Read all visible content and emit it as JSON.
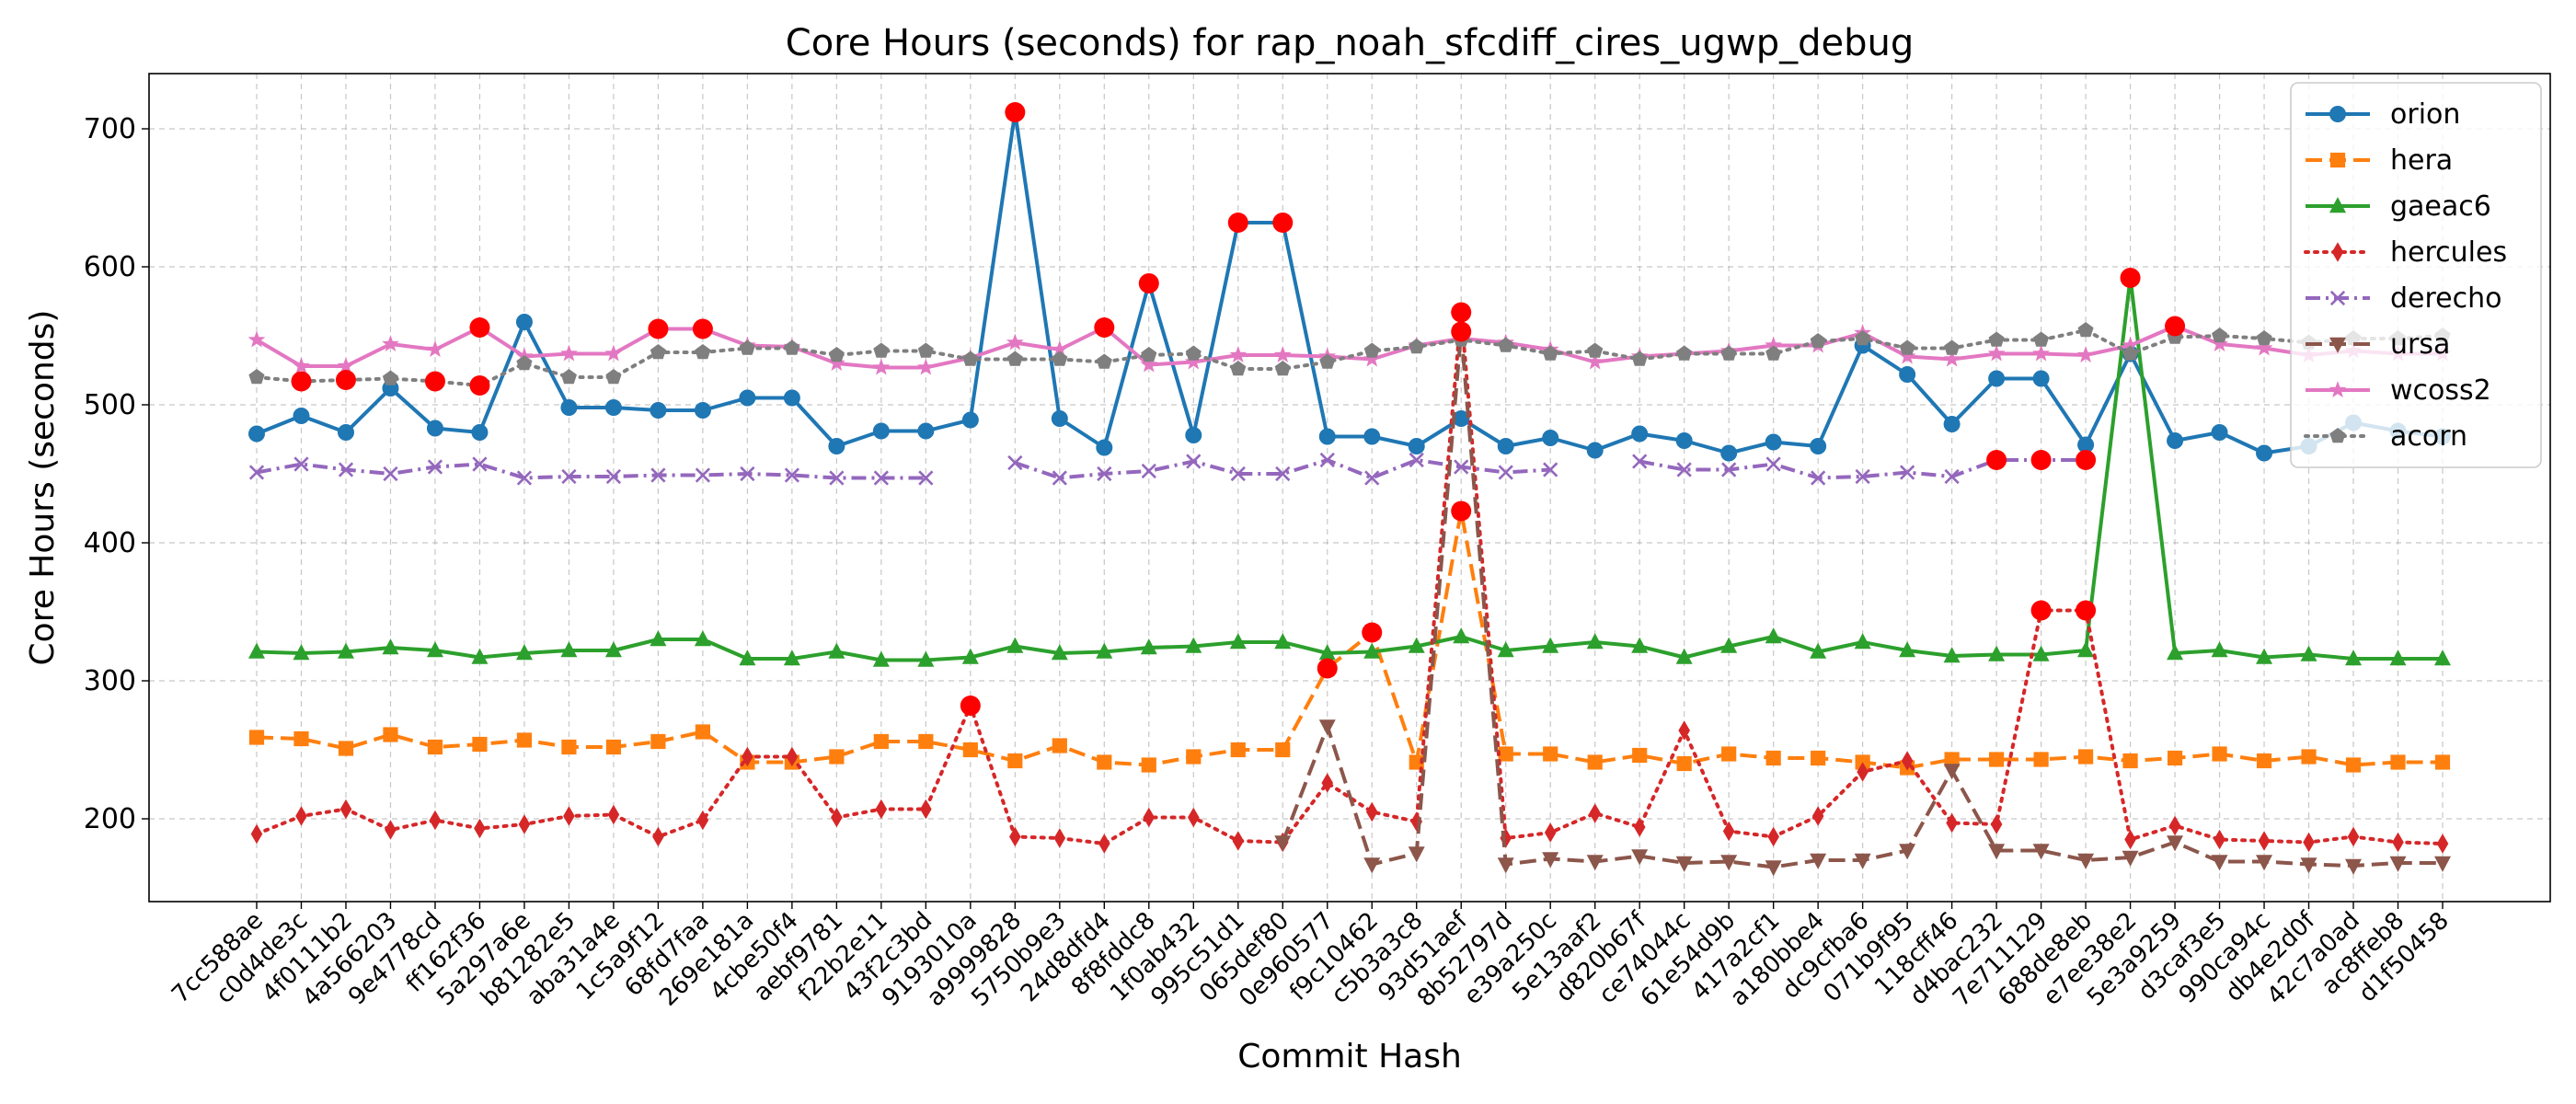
{
  "chart_data": {
    "type": "line",
    "title": "Core Hours (seconds) for rap_noah_sfcdiff_cires_ugwp_debug",
    "xlabel": "Commit Hash",
    "ylabel": "Core Hours (seconds)",
    "ylim": [
      140,
      740
    ],
    "yticks": [
      200,
      300,
      400,
      500,
      600,
      700
    ],
    "grid": true,
    "legend_position": "top-right",
    "categories": [
      "7cc588ae",
      "c0d4de3c",
      "4f0111b2",
      "4a566203",
      "9e4778cd",
      "ff162f36",
      "5a297a6e",
      "b81282e5",
      "aba31a4e",
      "1c5a9f12",
      "68fd7faa",
      "269e181a",
      "4cbe50f4",
      "aebf9781",
      "f22b2e11",
      "43f2c3bd",
      "9193010a",
      "a9999828",
      "5750b9e3",
      "24d8dfd4",
      "8f8fddc8",
      "1f0ab432",
      "995c51d1",
      "065def80",
      "0e960577",
      "f9c10462",
      "c5b3a3c8",
      "93d51aef",
      "8b52797d",
      "e39a250c",
      "5e13aaf2",
      "d820b67f",
      "ce74044c",
      "61e54d9b",
      "417a2cf1",
      "a180bbe4",
      "dc9cfba6",
      "071b9f95",
      "118cff46",
      "d4bac232",
      "7e711129",
      "688de8eb",
      "e7ee38e2",
      "5e3a9259",
      "d3caf3e5",
      "990ca94c",
      "db4e2d0f",
      "42c7a0ad",
      "ac8ffeb8",
      "d1f50458"
    ],
    "series": [
      {
        "name": "orion",
        "color": "#1f77b4",
        "marker": "circle",
        "dash": "solid",
        "values": [
          479,
          492,
          480,
          512,
          483,
          480,
          560,
          498,
          498,
          496,
          496,
          505,
          505,
          470,
          481,
          481,
          489,
          712,
          490,
          469,
          588,
          478,
          632,
          632,
          477,
          477,
          470,
          490,
          470,
          476,
          467,
          479,
          474,
          465,
          473,
          470,
          543,
          522,
          486,
          519,
          519,
          471,
          537,
          474,
          480,
          465,
          470,
          487,
          481,
          477
        ]
      },
      {
        "name": "hera",
        "color": "#ff7f0e",
        "marker": "square",
        "dash": "dashed",
        "values": [
          259,
          258,
          251,
          261,
          252,
          254,
          257,
          252,
          252,
          256,
          263,
          241,
          241,
          245,
          256,
          256,
          250,
          242,
          253,
          241,
          239,
          245,
          250,
          250,
          309,
          335,
          241,
          423,
          247,
          247,
          241,
          246,
          240,
          247,
          244,
          244,
          241,
          237,
          243,
          243,
          243,
          245,
          242,
          244,
          247,
          242,
          245,
          239,
          241,
          241
        ]
      },
      {
        "name": "gaeac6",
        "color": "#2ca02c",
        "marker": "triangle-up",
        "dash": "solid",
        "values": [
          321,
          320,
          321,
          324,
          322,
          317,
          320,
          322,
          322,
          330,
          330,
          316,
          316,
          321,
          315,
          315,
          317,
          325,
          320,
          321,
          324,
          325,
          328,
          328,
          320,
          321,
          325,
          332,
          322,
          325,
          328,
          325,
          317,
          325,
          332,
          321,
          328,
          322,
          318,
          319,
          319,
          322,
          592,
          320,
          322,
          317,
          319,
          316,
          316,
          316
        ]
      },
      {
        "name": "hercules",
        "color": "#d62728",
        "marker": "diamond",
        "dash": "dotted",
        "values": [
          189,
          202,
          207,
          192,
          199,
          193,
          196,
          202,
          203,
          187,
          199,
          245,
          245,
          201,
          207,
          207,
          282,
          187,
          186,
          182,
          201,
          201,
          184,
          183,
          226,
          205,
          198,
          567,
          186,
          190,
          204,
          194,
          264,
          191,
          187,
          202,
          234,
          242,
          197,
          196,
          351,
          351,
          185,
          195,
          185,
          184,
          183,
          187,
          183,
          182
        ]
      },
      {
        "name": "derecho",
        "color": "#9467bd",
        "marker": "x",
        "dash": "dashdot",
        "values": [
          451,
          457,
          453,
          450,
          455,
          457,
          447,
          448,
          448,
          449,
          449,
          450,
          449,
          447,
          447,
          447,
          null,
          458,
          447,
          450,
          452,
          459,
          450,
          450,
          460,
          447,
          460,
          455,
          451,
          453,
          null,
          459,
          453,
          453,
          457,
          447,
          448,
          451,
          448,
          460,
          460,
          460,
          null,
          null,
          null,
          null,
          null,
          null,
          null,
          null
        ]
      },
      {
        "name": "ursa",
        "color": "#8c564b",
        "marker": "triangle-down",
        "dash": "dashed",
        "values": [
          null,
          null,
          null,
          null,
          null,
          null,
          null,
          null,
          null,
          null,
          null,
          null,
          null,
          null,
          null,
          null,
          null,
          null,
          null,
          null,
          null,
          null,
          null,
          183,
          267,
          167,
          175,
          553,
          167,
          171,
          169,
          173,
          168,
          169,
          165,
          170,
          170,
          177,
          235,
          177,
          177,
          170,
          172,
          183,
          169,
          169,
          167,
          166,
          168,
          168
        ]
      },
      {
        "name": "wcoss2",
        "color": "#e377c2",
        "marker": "star",
        "dash": "solid",
        "values": [
          547,
          528,
          528,
          544,
          540,
          556,
          535,
          537,
          537,
          555,
          555,
          543,
          542,
          530,
          527,
          527,
          534,
          545,
          540,
          556,
          529,
          531,
          536,
          536,
          535,
          533,
          543,
          548,
          545,
          540,
          531,
          535,
          537,
          539,
          543,
          543,
          552,
          535,
          533,
          537,
          537,
          536,
          543,
          557,
          544,
          541,
          536,
          539,
          537,
          537
        ]
      },
      {
        "name": "acorn",
        "color": "#7f7f7f",
        "marker": "pentagon",
        "dash": "dotted",
        "values": [
          520,
          517,
          518,
          519,
          517,
          514,
          530,
          520,
          520,
          538,
          538,
          541,
          541,
          536,
          539,
          539,
          533,
          533,
          533,
          531,
          536,
          537,
          526,
          526,
          531,
          539,
          542,
          547,
          543,
          537,
          539,
          533,
          537,
          537,
          537,
          546,
          548,
          541,
          541,
          547,
          547,
          554,
          537,
          549,
          550,
          548,
          545,
          548,
          548,
          550
        ]
      }
    ],
    "highlights": [
      {
        "series": "orion",
        "indices": [
          17,
          20,
          22,
          23
        ]
      },
      {
        "series": "hera",
        "indices": [
          24,
          25,
          27
        ]
      },
      {
        "series": "gaeac6",
        "indices": [
          42
        ]
      },
      {
        "series": "hercules",
        "indices": [
          16,
          27,
          40,
          41
        ]
      },
      {
        "series": "derecho",
        "indices": [
          39,
          40,
          41
        ]
      },
      {
        "series": "ursa",
        "indices": [
          27
        ]
      },
      {
        "series": "wcoss2",
        "indices": [
          5,
          9,
          10,
          19,
          43
        ]
      },
      {
        "series": "acorn",
        "indices": [
          1,
          2,
          4,
          5
        ]
      }
    ],
    "highlight_color": "#ff0000"
  }
}
